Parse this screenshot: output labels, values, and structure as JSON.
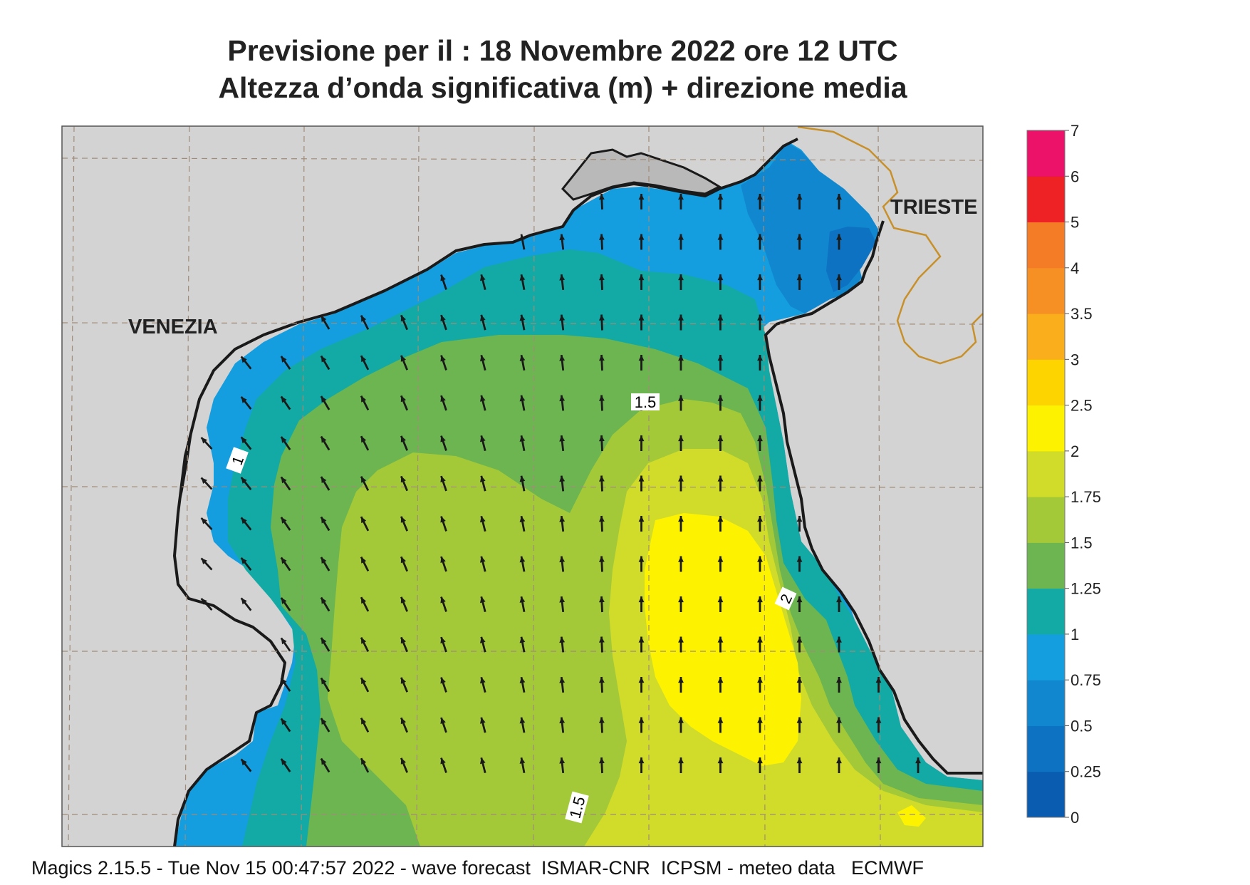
{
  "title": {
    "line1": "Previsione per il  :  18 Novembre  2022   ore 12 UTC",
    "line2": "Altezza d’onda significativa (m) + direzione media"
  },
  "map": {
    "cities": [
      "VENEZIA",
      "TRIESTE"
    ],
    "contour_labels": [
      "1",
      "1.5",
      "2",
      "1.5"
    ],
    "arrow_direction": "north-northwest",
    "colors": {
      "land": "#d3d3d3",
      "coast": "#1a1a1a",
      "border": "#c8902a",
      "grid": "#a08c78"
    }
  },
  "legend": {
    "title": "",
    "bins": [
      {
        "from": 0,
        "to": 0.25,
        "color": "#0a5cb0"
      },
      {
        "from": 0.25,
        "to": 0.5,
        "color": "#0d72c2"
      },
      {
        "from": 0.5,
        "to": 0.75,
        "color": "#1187d0"
      },
      {
        "from": 0.75,
        "to": 1,
        "color": "#149ee0"
      },
      {
        "from": 1,
        "to": 1.25,
        "color": "#13aaa5"
      },
      {
        "from": 1.25,
        "to": 1.5,
        "color": "#6cb550"
      },
      {
        "from": 1.5,
        "to": 1.75,
        "color": "#a3c938"
      },
      {
        "from": 1.75,
        "to": 2,
        "color": "#d1dc2a"
      },
      {
        "from": 2,
        "to": 2.5,
        "color": "#fdf300"
      },
      {
        "from": 2.5,
        "to": 3,
        "color": "#fdd400"
      },
      {
        "from": 3,
        "to": 3.5,
        "color": "#fbae1c"
      },
      {
        "from": 3.5,
        "to": 4,
        "color": "#f79024"
      },
      {
        "from": 4,
        "to": 5,
        "color": "#f47c26"
      },
      {
        "from": 5,
        "to": 6,
        "color": "#ee2124"
      },
      {
        "from": 6,
        "to": 7,
        "color": "#ec1169"
      }
    ],
    "tick_labels": [
      "0",
      "0.25",
      "0.5",
      "0.75",
      "1",
      "1.25",
      "1.5",
      "1.75",
      "2",
      "2.5",
      "3",
      "3.5",
      "4",
      "5",
      "6",
      "7"
    ]
  },
  "footer": "Magics 2.15.5 - Tue Nov 15 00:47:57 2022 - wave forecast  ISMAR-CNR  ICPSM - meteo data   ECMWF"
}
